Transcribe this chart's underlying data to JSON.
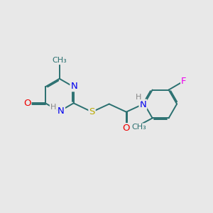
{
  "background_color": "#e8e8e8",
  "bond_color": "#2a7070",
  "bond_width": 1.4,
  "atom_colors": {
    "N": "#0000ee",
    "O": "#ee0000",
    "S": "#bbaa00",
    "F": "#ee00ee",
    "C": "#1a1a1a",
    "H": "#888888"
  },
  "font_size": 9.5
}
